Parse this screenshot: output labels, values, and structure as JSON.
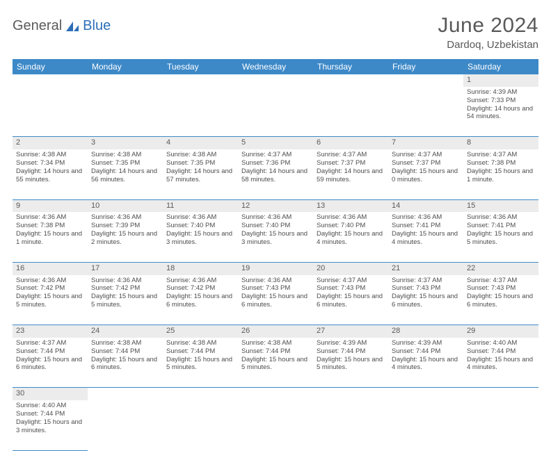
{
  "header": {
    "logo_part1": "General",
    "logo_part2": "Blue",
    "title": "June 2024",
    "location": "Dardoq, Uzbekistan"
  },
  "colors": {
    "header_bg": "#3d89c8",
    "header_text": "#ffffff",
    "daynum_bg": "#ececec",
    "border": "#3d89c8",
    "text": "#4d4d4d",
    "title_text": "#595959"
  },
  "weekdays": [
    "Sunday",
    "Monday",
    "Tuesday",
    "Wednesday",
    "Thursday",
    "Friday",
    "Saturday"
  ],
  "weeks": [
    [
      null,
      null,
      null,
      null,
      null,
      null,
      {
        "n": "1",
        "sunrise": "4:39 AM",
        "sunset": "7:33 PM",
        "daylight": "14 hours and 54 minutes."
      }
    ],
    [
      {
        "n": "2",
        "sunrise": "4:38 AM",
        "sunset": "7:34 PM",
        "daylight": "14 hours and 55 minutes."
      },
      {
        "n": "3",
        "sunrise": "4:38 AM",
        "sunset": "7:35 PM",
        "daylight": "14 hours and 56 minutes."
      },
      {
        "n": "4",
        "sunrise": "4:38 AM",
        "sunset": "7:35 PM",
        "daylight": "14 hours and 57 minutes."
      },
      {
        "n": "5",
        "sunrise": "4:37 AM",
        "sunset": "7:36 PM",
        "daylight": "14 hours and 58 minutes."
      },
      {
        "n": "6",
        "sunrise": "4:37 AM",
        "sunset": "7:37 PM",
        "daylight": "14 hours and 59 minutes."
      },
      {
        "n": "7",
        "sunrise": "4:37 AM",
        "sunset": "7:37 PM",
        "daylight": "15 hours and 0 minutes."
      },
      {
        "n": "8",
        "sunrise": "4:37 AM",
        "sunset": "7:38 PM",
        "daylight": "15 hours and 1 minute."
      }
    ],
    [
      {
        "n": "9",
        "sunrise": "4:36 AM",
        "sunset": "7:38 PM",
        "daylight": "15 hours and 1 minute."
      },
      {
        "n": "10",
        "sunrise": "4:36 AM",
        "sunset": "7:39 PM",
        "daylight": "15 hours and 2 minutes."
      },
      {
        "n": "11",
        "sunrise": "4:36 AM",
        "sunset": "7:40 PM",
        "daylight": "15 hours and 3 minutes."
      },
      {
        "n": "12",
        "sunrise": "4:36 AM",
        "sunset": "7:40 PM",
        "daylight": "15 hours and 3 minutes."
      },
      {
        "n": "13",
        "sunrise": "4:36 AM",
        "sunset": "7:40 PM",
        "daylight": "15 hours and 4 minutes."
      },
      {
        "n": "14",
        "sunrise": "4:36 AM",
        "sunset": "7:41 PM",
        "daylight": "15 hours and 4 minutes."
      },
      {
        "n": "15",
        "sunrise": "4:36 AM",
        "sunset": "7:41 PM",
        "daylight": "15 hours and 5 minutes."
      }
    ],
    [
      {
        "n": "16",
        "sunrise": "4:36 AM",
        "sunset": "7:42 PM",
        "daylight": "15 hours and 5 minutes."
      },
      {
        "n": "17",
        "sunrise": "4:36 AM",
        "sunset": "7:42 PM",
        "daylight": "15 hours and 5 minutes."
      },
      {
        "n": "18",
        "sunrise": "4:36 AM",
        "sunset": "7:42 PM",
        "daylight": "15 hours and 6 minutes."
      },
      {
        "n": "19",
        "sunrise": "4:36 AM",
        "sunset": "7:43 PM",
        "daylight": "15 hours and 6 minutes."
      },
      {
        "n": "20",
        "sunrise": "4:37 AM",
        "sunset": "7:43 PM",
        "daylight": "15 hours and 6 minutes."
      },
      {
        "n": "21",
        "sunrise": "4:37 AM",
        "sunset": "7:43 PM",
        "daylight": "15 hours and 6 minutes."
      },
      {
        "n": "22",
        "sunrise": "4:37 AM",
        "sunset": "7:43 PM",
        "daylight": "15 hours and 6 minutes."
      }
    ],
    [
      {
        "n": "23",
        "sunrise": "4:37 AM",
        "sunset": "7:44 PM",
        "daylight": "15 hours and 6 minutes."
      },
      {
        "n": "24",
        "sunrise": "4:38 AM",
        "sunset": "7:44 PM",
        "daylight": "15 hours and 6 minutes."
      },
      {
        "n": "25",
        "sunrise": "4:38 AM",
        "sunset": "7:44 PM",
        "daylight": "15 hours and 5 minutes."
      },
      {
        "n": "26",
        "sunrise": "4:38 AM",
        "sunset": "7:44 PM",
        "daylight": "15 hours and 5 minutes."
      },
      {
        "n": "27",
        "sunrise": "4:39 AM",
        "sunset": "7:44 PM",
        "daylight": "15 hours and 5 minutes."
      },
      {
        "n": "28",
        "sunrise": "4:39 AM",
        "sunset": "7:44 PM",
        "daylight": "15 hours and 4 minutes."
      },
      {
        "n": "29",
        "sunrise": "4:40 AM",
        "sunset": "7:44 PM",
        "daylight": "15 hours and 4 minutes."
      }
    ],
    [
      {
        "n": "30",
        "sunrise": "4:40 AM",
        "sunset": "7:44 PM",
        "daylight": "15 hours and 3 minutes."
      },
      null,
      null,
      null,
      null,
      null,
      null
    ]
  ],
  "labels": {
    "sunrise": "Sunrise: ",
    "sunset": "Sunset: ",
    "daylight": "Daylight: "
  }
}
